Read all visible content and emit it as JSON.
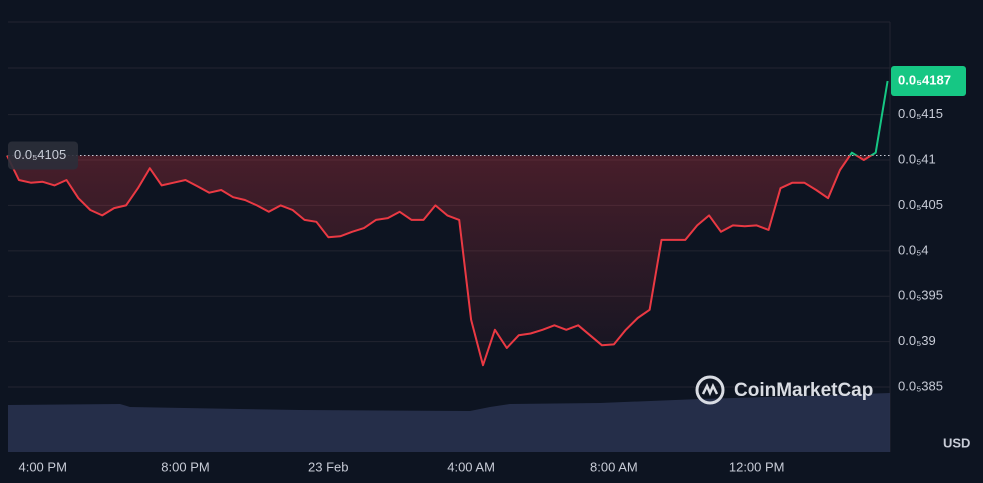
{
  "chart_data": {
    "type": "line",
    "categories": [
      null,
      null,
      null,
      "4:00 PM",
      null,
      null,
      null,
      null,
      null,
      null,
      null,
      null,
      null,
      null,
      null,
      "8:00 PM",
      null,
      null,
      null,
      null,
      null,
      null,
      null,
      null,
      null,
      null,
      null,
      "23 Feb",
      null,
      null,
      null,
      null,
      null,
      null,
      null,
      null,
      null,
      null,
      null,
      "4:00 AM",
      null,
      null,
      null,
      null,
      null,
      null,
      null,
      null,
      null,
      null,
      null,
      "8:00 AM",
      null,
      null,
      null,
      null,
      null,
      null,
      null,
      null,
      null,
      null,
      null,
      "12:00 PM",
      null,
      null,
      null,
      null,
      null,
      null,
      null,
      null,
      null,
      null,
      null
    ],
    "series": [
      {
        "name": "USD",
        "up_color": "#16c784",
        "down_color": "#ea3943",
        "values": [
          4.105e-06,
          4.078e-06,
          4.075e-06,
          4.076e-06,
          4.072e-06,
          4.078e-06,
          4.058e-06,
          4.045e-06,
          4.039e-06,
          4.047e-06,
          4.05e-06,
          4.069e-06,
          4.091e-06,
          4.072e-06,
          4.075e-06,
          4.078e-06,
          4.071e-06,
          4.064e-06,
          4.067e-06,
          4.059e-06,
          4.056e-06,
          4.05e-06,
          4.043e-06,
          4.05e-06,
          4.045e-06,
          4.034e-06,
          4.032e-06,
          4.015e-06,
          4.016e-06,
          4.021e-06,
          4.025e-06,
          4.034e-06,
          4.036e-06,
          4.043e-06,
          4.034e-06,
          4.034e-06,
          4.05e-06,
          4.039e-06,
          4.034e-06,
          3.924e-06,
          3.874e-06,
          3.913e-06,
          3.893e-06,
          3.907e-06,
          3.909e-06,
          3.913e-06,
          3.918e-06,
          3.913e-06,
          3.918e-06,
          3.907e-06,
          3.896e-06,
          3.897e-06,
          3.913e-06,
          3.926e-06,
          3.935e-06,
          4.012e-06,
          4.012e-06,
          4.012e-06,
          4.028e-06,
          4.039e-06,
          4.021e-06,
          4.028e-06,
          4.027e-06,
          4.028e-06,
          4.023e-06,
          4.069e-06,
          4.075e-06,
          4.075e-06,
          4.067e-06,
          4.058e-06,
          4.089e-06,
          4.108e-06,
          4.1e-06,
          4.108e-06,
          4.187e-06
        ]
      }
    ],
    "ylim": [
      3.78e-06,
      4.25e-06
    ],
    "yticks": [
      {
        "value": 3.85e-06,
        "label": "0.0₅385"
      },
      {
        "value": 3.9e-06,
        "label": "0.0₅39"
      },
      {
        "value": 3.95e-06,
        "label": "0.0₅395"
      },
      {
        "value": 4e-06,
        "label": "0.0₅4"
      },
      {
        "value": 4.05e-06,
        "label": "0.0₅405"
      },
      {
        "value": 4.1e-06,
        "label": "0.0₅41"
      },
      {
        "value": 4.15e-06,
        "label": "0.0₅415"
      }
    ],
    "reference_line": {
      "value": 4.105e-06,
      "label": "0.0₅4105"
    },
    "last_price": {
      "value": 4.187e-06,
      "label": "0.0₅4187"
    },
    "y_axis_unit": "USD",
    "watermark": "CoinMarketCap",
    "grid": true
  }
}
